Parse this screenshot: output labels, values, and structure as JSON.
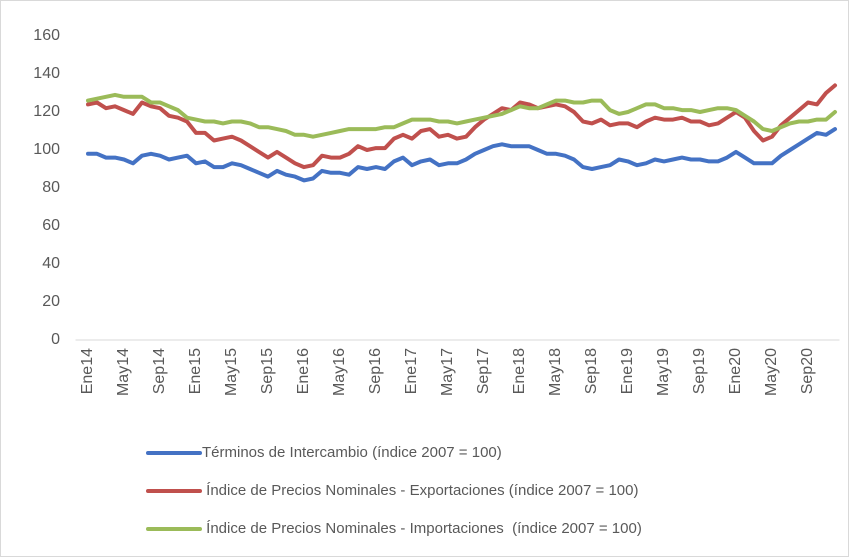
{
  "chart_data": {
    "type": "line",
    "categories": [
      "Ene14",
      null,
      null,
      null,
      "May14",
      null,
      null,
      null,
      "Sep14",
      null,
      null,
      null,
      "Ene15",
      null,
      null,
      null,
      "May15",
      null,
      null,
      null,
      "Sep15",
      null,
      null,
      null,
      "Ene16",
      null,
      null,
      null,
      "May16",
      null,
      null,
      null,
      "Sep16",
      null,
      null,
      null,
      "Ene17",
      null,
      null,
      null,
      "May17",
      null,
      null,
      null,
      "Sep17",
      null,
      null,
      null,
      "Ene18",
      null,
      null,
      null,
      "May18",
      null,
      null,
      null,
      "Sep18",
      null,
      null,
      null,
      "Ene19",
      null,
      null,
      null,
      "May19",
      null,
      null,
      null,
      "Sep19",
      null,
      null,
      null,
      "Ene20",
      null,
      null,
      null,
      "May20",
      null,
      null,
      null,
      "Sep20",
      null,
      null,
      null
    ],
    "series": [
      {
        "name": "Términos de Intercambio (índice 2007 = 100)",
        "color": "#4472c4",
        "values": [
          98,
          98,
          96,
          96,
          95,
          93,
          97,
          98,
          97,
          95,
          96,
          97,
          93,
          94,
          91,
          91,
          93,
          92,
          90,
          88,
          86,
          89,
          87,
          86,
          84,
          85,
          89,
          88,
          88,
          87,
          91,
          90,
          91,
          90,
          94,
          96,
          92,
          94,
          95,
          92,
          93,
          93,
          95,
          98,
          100,
          102,
          103,
          102,
          102,
          102,
          100,
          98,
          98,
          97,
          95,
          91,
          90,
          91,
          92,
          95,
          94,
          92,
          93,
          95,
          94,
          95,
          96,
          95,
          95,
          94,
          94,
          96,
          99,
          96,
          93,
          93,
          93,
          97,
          100,
          103,
          106,
          109,
          108,
          111
        ]
      },
      {
        "name": " Índice de Precios Nominales - Exportaciones (índice 2007 = 100)",
        "color": "#c0504d",
        "values": [
          124,
          125,
          122,
          123,
          121,
          119,
          125,
          123,
          122,
          118,
          117,
          115,
          109,
          109,
          105,
          106,
          107,
          105,
          102,
          99,
          96,
          99,
          96,
          93,
          91,
          92,
          97,
          96,
          96,
          98,
          102,
          100,
          101,
          101,
          106,
          108,
          106,
          110,
          111,
          107,
          108,
          106,
          107,
          112,
          116,
          119,
          122,
          121,
          125,
          124,
          122,
          123,
          124,
          123,
          120,
          115,
          114,
          116,
          113,
          114,
          114,
          112,
          115,
          117,
          116,
          116,
          117,
          115,
          115,
          113,
          114,
          117,
          120,
          117,
          110,
          105,
          107,
          113,
          117,
          121,
          125,
          124,
          130,
          134
        ]
      },
      {
        "name": " Índice de Precios Nominales - Importaciones  (índice 2007 = 100)",
        "color": "#9bbb59",
        "values": [
          126,
          127,
          128,
          129,
          128,
          128,
          128,
          125,
          125,
          123,
          121,
          117,
          116,
          115,
          115,
          114,
          115,
          115,
          114,
          112,
          112,
          111,
          110,
          108,
          108,
          107,
          108,
          109,
          110,
          111,
          111,
          111,
          111,
          112,
          112,
          114,
          116,
          116,
          116,
          115,
          115,
          114,
          115,
          116,
          117,
          118,
          119,
          121,
          123,
          122,
          122,
          124,
          126,
          126,
          125,
          125,
          126,
          126,
          121,
          119,
          120,
          122,
          124,
          124,
          122,
          122,
          121,
          121,
          120,
          121,
          122,
          122,
          121,
          118,
          115,
          111,
          110,
          112,
          114,
          115,
          115,
          116,
          116,
          120
        ]
      }
    ],
    "ylim": [
      0,
      160
    ],
    "yticks": [
      0,
      20,
      40,
      60,
      80,
      100,
      120,
      140,
      160
    ],
    "grid": false,
    "legend": "bottom"
  }
}
